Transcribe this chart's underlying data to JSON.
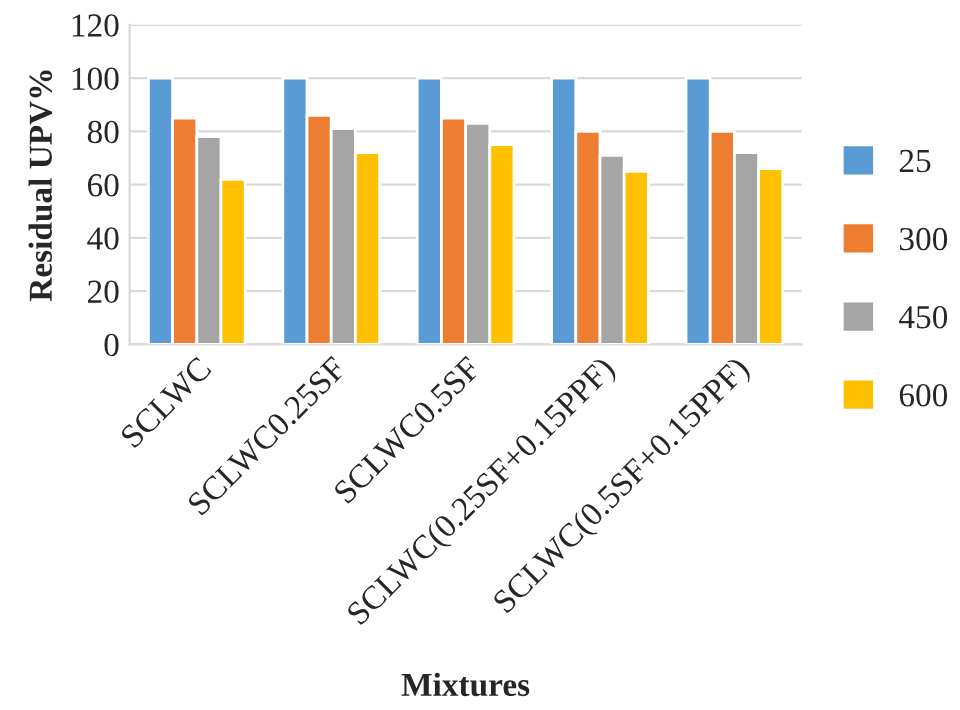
{
  "chart_data": {
    "type": "bar",
    "xlabel": "Mixtures",
    "ylabel": "Residual UPV%",
    "categories": [
      "SCLWC",
      "SCLWC0.25SF",
      "SCLWC0.5SF",
      "SCLWC(0.25SF+0.15PPF)",
      "SCLWC(0.5SF+0.15PPF)"
    ],
    "series": [
      {
        "name": "25",
        "color": "#5b9bd5",
        "values": [
          100,
          100,
          100,
          100,
          100
        ]
      },
      {
        "name": "300",
        "color": "#ed7d31",
        "values": [
          85,
          86,
          85,
          80,
          80
        ]
      },
      {
        "name": "450",
        "color": "#a5a5a5",
        "values": [
          78,
          81,
          83,
          71,
          72
        ]
      },
      {
        "name": "600",
        "color": "#ffc000",
        "values": [
          62,
          72,
          75,
          65,
          66
        ]
      }
    ],
    "ylim": [
      0,
      120
    ],
    "yticks": [
      0,
      20,
      40,
      60,
      80,
      100,
      120
    ],
    "grid": "y",
    "legend": "right"
  }
}
